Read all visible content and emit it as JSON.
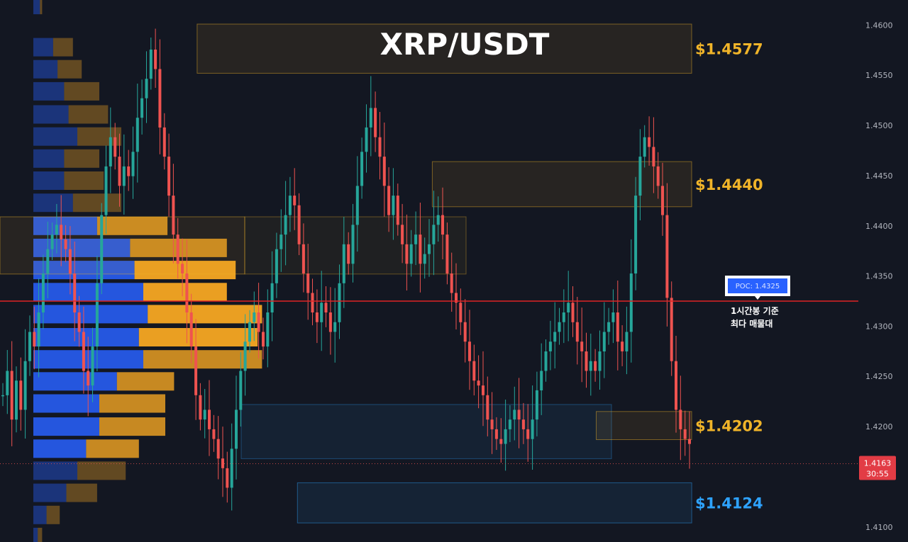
{
  "chart_data": {
    "type": "candlestick",
    "title": "XRP/USDT",
    "ylim": [
      1.4085,
      1.4625
    ],
    "y_ticks": [
      "1.4600",
      "1.4550",
      "1.4500",
      "1.4450",
      "1.4400",
      "1.4350",
      "1.4300",
      "1.4250",
      "1.4200",
      "1.4100"
    ],
    "current_price": {
      "value": "1.4163",
      "countdown": "30:55",
      "numeric": 1.4163
    },
    "poc": {
      "label": "POC: 1.4325",
      "value": 1.4325,
      "annotation_line1": "1시간봉 기준",
      "annotation_line2": "최다 매물대"
    },
    "zones": [
      {
        "name": "resistance-top",
        "label": "$1.4577",
        "y_top": 1.4601,
        "y_bottom": 1.4552,
        "x_start": 0.285,
        "x_end": 1.0,
        "color": "#f0b429"
      },
      {
        "name": "resistance-mid",
        "label": "$1.4440",
        "y_top": 1.4464,
        "y_bottom": 1.4419,
        "x_start": 0.625,
        "x_end": 1.0,
        "color": "#f0b429"
      },
      {
        "name": "support-1",
        "label": "$1.4202",
        "y_top": 1.4215,
        "y_bottom": 1.4187,
        "x_start": 0.862,
        "x_end": 1.0,
        "color": "#f0b429"
      },
      {
        "name": "support-2",
        "label": "$1.4124",
        "y_top": 1.4144,
        "y_bottom": 1.4104,
        "x_start": 0.43,
        "x_end": 1.0,
        "color": "#2ea3ff"
      }
    ],
    "volume_profile": [
      {
        "price": 1.462,
        "blue": 0.15,
        "orange": 0.05
      },
      {
        "price": 1.4578,
        "blue": 0.45,
        "orange": 0.45
      },
      {
        "price": 1.4556,
        "blue": 0.55,
        "orange": 0.55
      },
      {
        "price": 1.4534,
        "blue": 0.7,
        "orange": 0.8
      },
      {
        "price": 1.4511,
        "blue": 0.8,
        "orange": 0.9
      },
      {
        "price": 1.4489,
        "blue": 1.0,
        "orange": 1.0
      },
      {
        "price": 1.4467,
        "blue": 0.7,
        "orange": 0.8
      },
      {
        "price": 1.4445,
        "blue": 0.7,
        "orange": 0.9
      },
      {
        "price": 1.4423,
        "blue": 0.9,
        "orange": 1.1
      },
      {
        "price": 1.44,
        "blue": 1.45,
        "orange": 1.6
      },
      {
        "price": 1.4378,
        "blue": 2.2,
        "orange": 2.2
      },
      {
        "price": 1.4356,
        "blue": 2.3,
        "orange": 2.3
      },
      {
        "price": 1.4334,
        "blue": 2.5,
        "orange": 1.9
      },
      {
        "price": 1.4312,
        "blue": 2.6,
        "orange": 2.6
      },
      {
        "price": 1.4289,
        "blue": 2.4,
        "orange": 2.7
      },
      {
        "price": 1.4267,
        "blue": 2.5,
        "orange": 2.7
      },
      {
        "price": 1.4245,
        "blue": 1.9,
        "orange": 1.3
      },
      {
        "price": 1.4223,
        "blue": 1.5,
        "orange": 1.5
      },
      {
        "price": 1.42,
        "blue": 1.5,
        "orange": 1.5
      },
      {
        "price": 1.4178,
        "blue": 1.2,
        "orange": 1.2
      },
      {
        "price": 1.4156,
        "blue": 1.0,
        "orange": 1.1
      },
      {
        "price": 1.4134,
        "blue": 0.75,
        "orange": 0.7
      },
      {
        "price": 1.4112,
        "blue": 0.3,
        "orange": 0.3
      },
      {
        "price": 1.409,
        "blue": 0.1,
        "orange": 0.1
      }
    ],
    "candle_shape": [
      0.25,
      0.3,
      0.2,
      0.28,
      0.22,
      0.32,
      0.38,
      0.35,
      0.42,
      0.5,
      0.55,
      0.58,
      0.6,
      0.57,
      0.55,
      0.5,
      0.42,
      0.38,
      0.3,
      0.27,
      0.35,
      0.48,
      0.62,
      0.72,
      0.78,
      0.74,
      0.68,
      0.72,
      0.7,
      0.75,
      0.82,
      0.86,
      0.9,
      0.96,
      0.92,
      0.8,
      0.74,
      0.66,
      0.58,
      0.52,
      0.5,
      0.42,
      0.35,
      0.25,
      0.2,
      0.22,
      0.18,
      0.16,
      0.12,
      0.1,
      0.06,
      0.14,
      0.22,
      0.3,
      0.36,
      0.4,
      0.42,
      0.38,
      0.35,
      0.42,
      0.48,
      0.55,
      0.58,
      0.62,
      0.66,
      0.64,
      0.56,
      0.5,
      0.46,
      0.42,
      0.4,
      0.44,
      0.42,
      0.38,
      0.4,
      0.48,
      0.56,
      0.52,
      0.6,
      0.68,
      0.75,
      0.8,
      0.84,
      0.78,
      0.74,
      0.68,
      0.62,
      0.66,
      0.6,
      0.56,
      0.52,
      0.56,
      0.58,
      0.52,
      0.54,
      0.56,
      0.6,
      0.62,
      0.58,
      0.5,
      0.46,
      0.44,
      0.4,
      0.36,
      0.32,
      0.28,
      0.27,
      0.25,
      0.2,
      0.18,
      0.16,
      0.15,
      0.18,
      0.2,
      0.22,
      0.2,
      0.18,
      0.16,
      0.2,
      0.26,
      0.3,
      0.34,
      0.36,
      0.38,
      0.4,
      0.42,
      0.44,
      0.4,
      0.36,
      0.34,
      0.3,
      0.32,
      0.3,
      0.34,
      0.38,
      0.4,
      0.42,
      0.36,
      0.34,
      0.38,
      0.5,
      0.66,
      0.74,
      0.78,
      0.76,
      0.72,
      0.68,
      0.62,
      0.45,
      0.32,
      0.22,
      0.18,
      0.16,
      0.15
    ],
    "grid": false,
    "legend": "none"
  },
  "colors": {
    "background": "#131722",
    "candle_up": "#26a69a",
    "candle_down": "#ef5350",
    "poc_line": "#e02424",
    "profile_blue": "#2962ff",
    "profile_orange": "#f5a623",
    "zone_gold": "#f0b429",
    "zone_blue": "#2ea3ff",
    "price_tag": "#e23c45"
  }
}
